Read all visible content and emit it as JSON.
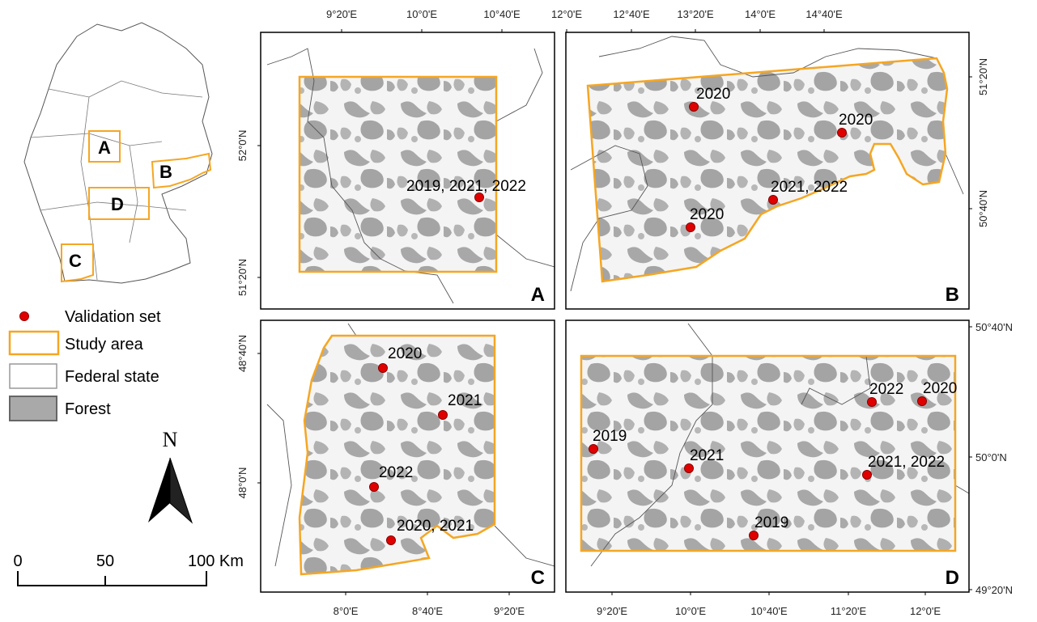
{
  "overview": {
    "labels": [
      "A",
      "B",
      "C",
      "D"
    ]
  },
  "legend": [
    {
      "label": "Validation set"
    },
    {
      "label": "Study area"
    },
    {
      "label": "Federal state"
    },
    {
      "label": "Forest"
    }
  ],
  "north_arrow": {
    "label": "N"
  },
  "scale_bar": {
    "labels": [
      "0",
      "50",
      "100 Km"
    ]
  },
  "panels": [
    {
      "letter": "A",
      "top_axis": [
        "9°20'E",
        "10°0'E",
        "10°40'E"
      ],
      "left_axis": [
        "52°0'N",
        "51°20'N"
      ],
      "points": [
        {
          "label": "2019, 2021, 2022"
        }
      ]
    },
    {
      "letter": "B",
      "top_axis": [
        "12°0'E",
        "12°40'E",
        "13°20'E",
        "14°0'E",
        "14°40'E"
      ],
      "right_axis": [
        "51°20'N",
        "50°40'N"
      ],
      "points": [
        {
          "label": "2020"
        },
        {
          "label": "2020"
        },
        {
          "label": "2021, 2022"
        },
        {
          "label": "2020"
        }
      ]
    },
    {
      "letter": "C",
      "left_axis": [
        "48°40'N",
        "48°0'N"
      ],
      "bottom_axis": [
        "8°0'E",
        "8°40'E",
        "9°20'E"
      ],
      "points": [
        {
          "label": "2020"
        },
        {
          "label": "2021"
        },
        {
          "label": "2022"
        },
        {
          "label": "2020, 2021"
        }
      ]
    },
    {
      "letter": "D",
      "right_axis": [
        "50°40'N",
        "50°0'N",
        "49°20'N"
      ],
      "bottom_axis": [
        "9°20'E",
        "10°0'E",
        "10°40'E",
        "11°20'E",
        "12°0'E"
      ],
      "points": [
        {
          "label": "2022"
        },
        {
          "label": "2020"
        },
        {
          "label": "2019"
        },
        {
          "label": "2021"
        },
        {
          "label": "2021, 2022"
        },
        {
          "label": "2019"
        }
      ]
    }
  ]
}
